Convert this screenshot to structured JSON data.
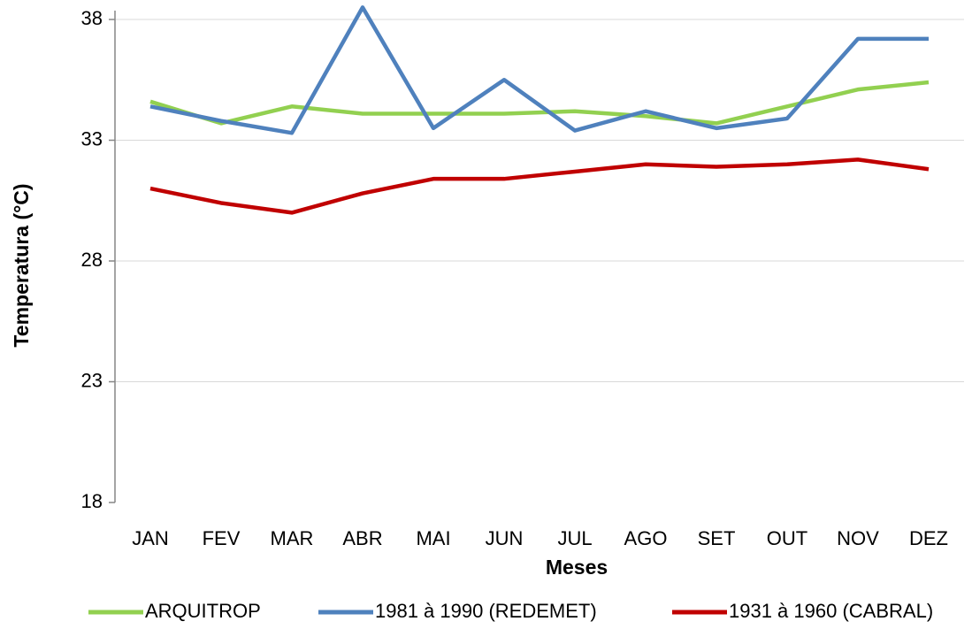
{
  "chart_data": {
    "type": "line",
    "x_label": "Meses",
    "y_label": "Temperatura (°C)",
    "categories": [
      "JAN",
      "FEV",
      "MAR",
      "ABR",
      "MAI",
      "JUN",
      "JUL",
      "AGO",
      "SET",
      "OUT",
      "NOV",
      "DEZ"
    ],
    "series": [
      {
        "name": "ARQUITROP",
        "color": "#92d050",
        "values": [
          34.6,
          33.7,
          34.4,
          34.1,
          34.1,
          34.1,
          34.2,
          34.0,
          33.7,
          34.4,
          35.1,
          35.4
        ]
      },
      {
        "name": "1981 à 1990 (REDEMET)",
        "color": "#4f81bd",
        "values": [
          34.4,
          33.8,
          33.3,
          38.5,
          33.5,
          35.5,
          33.4,
          34.2,
          33.5,
          33.9,
          37.2,
          37.2
        ]
      },
      {
        "name": "1931 à 1960 (CABRAL)",
        "color": "#c00000",
        "values": [
          31.0,
          30.4,
          30.0,
          30.8,
          31.4,
          31.4,
          31.7,
          32.0,
          31.9,
          32.0,
          32.2,
          31.8
        ]
      }
    ],
    "ylim": [
      18,
      38
    ],
    "yticks": [
      18,
      23,
      28,
      33,
      38
    ],
    "grid": true,
    "legend": "bottom"
  }
}
